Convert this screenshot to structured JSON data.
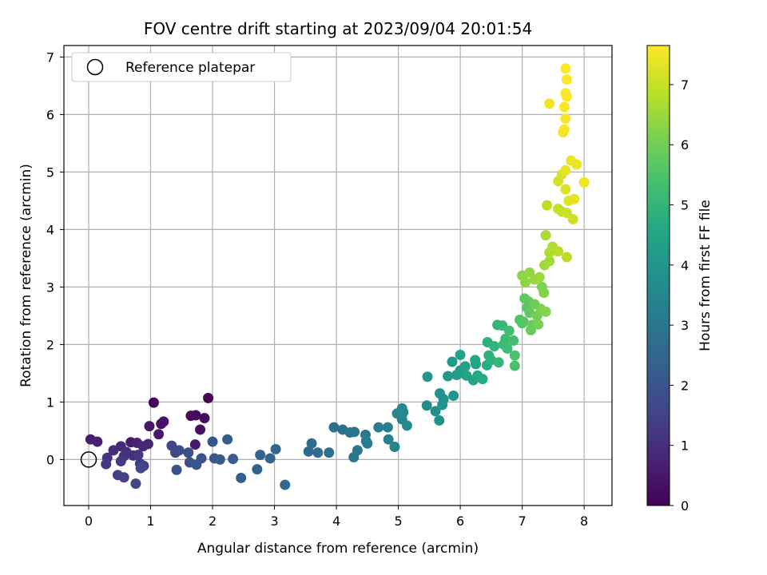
{
  "chart_data": {
    "type": "scatter",
    "title": "FOV centre drift starting at 2023/09/04 20:01:54",
    "xlabel": "Angular distance from reference (arcmin)",
    "ylabel": "Rotation from reference (arcmin)",
    "xlim": [
      -0.4,
      8.45
    ],
    "ylim": [
      -0.8,
      7.2
    ],
    "xticks": [
      0,
      1,
      2,
      3,
      4,
      5,
      6,
      7,
      8
    ],
    "yticks": [
      0,
      1,
      2,
      3,
      4,
      5,
      6,
      7
    ],
    "grid": true,
    "legend": {
      "position": "top-left",
      "label": "Reference platepar",
      "marker": "open-circle"
    },
    "reference_point": {
      "x": 0,
      "y": 0,
      "label": "Reference platepar"
    },
    "colorbar": {
      "label": "Hours from first FF file",
      "colormap": "viridis",
      "range": [
        0,
        7.65
      ],
      "ticks": [
        0,
        1,
        2,
        3,
        4,
        5,
        6,
        7
      ]
    },
    "series": [
      {
        "points": [
          [
            1.05,
            0.99,
            0.05
          ],
          [
            1.93,
            1.07,
            0.1
          ],
          [
            1.65,
            0.76,
            0.15
          ],
          [
            1.73,
            0.77,
            0.2
          ],
          [
            1.87,
            0.72,
            0.25
          ],
          [
            1.8,
            0.52,
            0.3
          ],
          [
            1.17,
            0.62,
            0.35
          ],
          [
            1.21,
            0.66,
            0.4
          ],
          [
            0.98,
            0.58,
            0.45
          ],
          [
            1.13,
            0.44,
            0.5
          ],
          [
            1.72,
            0.26,
            0.55
          ],
          [
            0.68,
            0.3,
            0.6
          ],
          [
            0.03,
            0.35,
            0.65
          ],
          [
            0.14,
            0.31,
            0.7
          ],
          [
            0.78,
            0.29,
            0.75
          ],
          [
            0.96,
            0.27,
            0.8
          ],
          [
            0.88,
            0.23,
            0.85
          ],
          [
            0.52,
            0.23,
            0.9
          ],
          [
            0.4,
            0.16,
            0.95
          ],
          [
            0.61,
            0.13,
            1.0
          ],
          [
            0.72,
            0.07,
            1.05
          ],
          [
            0.3,
            0.03,
            1.1
          ],
          [
            0.57,
            0.06,
            1.15
          ],
          [
            0.8,
            0.08,
            1.2
          ],
          [
            0.28,
            -0.08,
            1.25
          ],
          [
            0.52,
            -0.03,
            1.3
          ],
          [
            0.83,
            -0.07,
            1.35
          ],
          [
            0.89,
            -0.11,
            1.4
          ],
          [
            0.47,
            -0.27,
            1.45
          ],
          [
            0.57,
            -0.31,
            1.5
          ],
          [
            0.76,
            -0.42,
            1.55
          ],
          [
            0.84,
            -0.15,
            1.6
          ],
          [
            1.34,
            0.24,
            1.65
          ],
          [
            1.4,
            0.12,
            1.7
          ],
          [
            1.46,
            0.16,
            1.75
          ],
          [
            1.61,
            0.12,
            1.8
          ],
          [
            1.63,
            -0.05,
            1.85
          ],
          [
            1.42,
            -0.18,
            1.9
          ],
          [
            1.82,
            0.02,
            1.95
          ],
          [
            1.74,
            -0.09,
            2.0
          ],
          [
            2.0,
            0.31,
            2.05
          ],
          [
            2.03,
            0.02,
            2.1
          ],
          [
            2.12,
            0.0,
            2.15
          ],
          [
            2.24,
            0.35,
            2.2
          ],
          [
            2.33,
            0.01,
            2.25
          ],
          [
            2.46,
            -0.32,
            2.3
          ],
          [
            2.77,
            0.08,
            2.35
          ],
          [
            2.72,
            -0.17,
            2.4
          ],
          [
            2.93,
            0.02,
            2.45
          ],
          [
            3.02,
            0.18,
            2.5
          ],
          [
            3.17,
            -0.44,
            2.55
          ],
          [
            3.55,
            0.14,
            2.6
          ],
          [
            3.6,
            0.28,
            2.65
          ],
          [
            3.7,
            0.12,
            2.7
          ],
          [
            3.88,
            0.12,
            2.75
          ],
          [
            3.96,
            0.56,
            2.8
          ],
          [
            4.1,
            0.52,
            2.85
          ],
          [
            4.22,
            0.47,
            2.9
          ],
          [
            4.29,
            0.48,
            2.95
          ],
          [
            4.34,
            0.16,
            3.0
          ],
          [
            4.28,
            0.04,
            3.05
          ],
          [
            4.47,
            0.43,
            3.1
          ],
          [
            4.5,
            0.28,
            3.15
          ],
          [
            4.48,
            0.32,
            3.2
          ],
          [
            4.68,
            0.56,
            3.25
          ],
          [
            4.83,
            0.56,
            3.3
          ],
          [
            4.84,
            0.35,
            3.35
          ],
          [
            4.94,
            0.22,
            3.4
          ],
          [
            4.98,
            0.8,
            3.45
          ],
          [
            5.06,
            0.7,
            3.5
          ],
          [
            5.08,
            0.82,
            3.55
          ],
          [
            5.06,
            0.89,
            3.6
          ],
          [
            5.14,
            0.59,
            3.65
          ],
          [
            5.46,
            0.94,
            3.7
          ],
          [
            5.6,
            0.84,
            3.75
          ],
          [
            5.66,
            0.68,
            3.8
          ],
          [
            5.67,
            1.15,
            3.85
          ],
          [
            5.73,
            1.05,
            3.9
          ],
          [
            5.71,
            0.95,
            3.95
          ],
          [
            5.89,
            1.11,
            4.0
          ],
          [
            5.47,
            1.44,
            4.05
          ],
          [
            5.8,
            1.45,
            4.1
          ],
          [
            5.87,
            1.7,
            4.15
          ],
          [
            5.94,
            1.47,
            4.2
          ],
          [
            6.0,
            1.55,
            4.25
          ],
          [
            6.04,
            1.5,
            4.3
          ],
          [
            6.08,
            1.62,
            4.35
          ],
          [
            6.0,
            1.82,
            4.4
          ],
          [
            6.1,
            1.46,
            4.45
          ],
          [
            6.21,
            1.38,
            4.5
          ],
          [
            6.25,
            1.66,
            4.55
          ],
          [
            6.24,
            1.73,
            4.6
          ],
          [
            6.28,
            1.46,
            4.65
          ],
          [
            6.36,
            1.4,
            4.7
          ],
          [
            6.43,
            1.64,
            4.75
          ],
          [
            6.46,
            1.81,
            4.8
          ],
          [
            6.44,
            2.04,
            4.85
          ],
          [
            6.5,
            1.73,
            4.9
          ],
          [
            6.55,
            1.97,
            4.95
          ],
          [
            6.6,
            2.34,
            5.0
          ],
          [
            6.62,
            1.69,
            5.05
          ],
          [
            6.68,
            2.33,
            5.1
          ],
          [
            6.7,
            2.0,
            5.15
          ],
          [
            6.73,
            2.1,
            5.2
          ],
          [
            6.76,
            1.93,
            5.25
          ],
          [
            6.79,
            2.24,
            5.3
          ],
          [
            6.86,
            2.07,
            5.35
          ],
          [
            6.88,
            1.63,
            5.4
          ],
          [
            6.88,
            1.81,
            5.45
          ],
          [
            6.96,
            2.43,
            5.5
          ],
          [
            7.0,
            2.37,
            5.55
          ],
          [
            7.02,
            2.4,
            5.6
          ],
          [
            7.08,
            2.64,
            5.65
          ],
          [
            7.1,
            2.75,
            5.7
          ],
          [
            7.04,
            2.8,
            5.75
          ],
          [
            7.12,
            2.55,
            5.8
          ],
          [
            7.14,
            2.25,
            5.85
          ],
          [
            7.16,
            2.34,
            5.9
          ],
          [
            7.2,
            2.7,
            5.95
          ],
          [
            7.24,
            2.5,
            6.0
          ],
          [
            7.26,
            2.35,
            6.05
          ],
          [
            7.3,
            2.62,
            6.1
          ],
          [
            7.32,
            3.0,
            6.15
          ],
          [
            7.35,
            2.9,
            6.2
          ],
          [
            7.38,
            2.57,
            6.25
          ],
          [
            7.0,
            3.2,
            6.3
          ],
          [
            7.05,
            3.08,
            6.35
          ],
          [
            7.12,
            3.25,
            6.4
          ],
          [
            7.2,
            3.13,
            6.45
          ],
          [
            7.28,
            3.17,
            6.5
          ],
          [
            7.36,
            3.38,
            6.55
          ],
          [
            7.44,
            3.45,
            6.6
          ],
          [
            7.38,
            3.9,
            6.65
          ],
          [
            7.44,
            3.6,
            6.7
          ],
          [
            7.49,
            3.7,
            6.75
          ],
          [
            7.58,
            3.62,
            6.8
          ],
          [
            7.72,
            3.52,
            6.85
          ],
          [
            7.4,
            4.42,
            6.9
          ],
          [
            7.58,
            4.36,
            6.95
          ],
          [
            7.64,
            4.31,
            7.0
          ],
          [
            7.72,
            4.29,
            7.05
          ],
          [
            7.82,
            4.18,
            7.1
          ],
          [
            7.58,
            4.84,
            7.15
          ],
          [
            7.64,
            4.96,
            7.2
          ],
          [
            7.7,
            4.7,
            7.25
          ],
          [
            7.75,
            4.5,
            7.3
          ],
          [
            7.84,
            4.53,
            7.35
          ],
          [
            7.7,
            5.03,
            7.4
          ],
          [
            7.79,
            5.2,
            7.42
          ],
          [
            7.88,
            5.13,
            7.45
          ],
          [
            8.0,
            4.82,
            7.48
          ],
          [
            7.44,
            6.19,
            7.5
          ],
          [
            7.66,
            5.69,
            7.52
          ],
          [
            7.68,
            5.74,
            7.55
          ],
          [
            7.7,
            5.93,
            7.58
          ],
          [
            7.68,
            6.13,
            7.6
          ],
          [
            7.7,
            6.37,
            7.62
          ],
          [
            7.72,
            6.31,
            7.63
          ],
          [
            7.72,
            6.61,
            7.64
          ],
          [
            7.7,
            6.8,
            7.65
          ]
        ]
      }
    ]
  }
}
